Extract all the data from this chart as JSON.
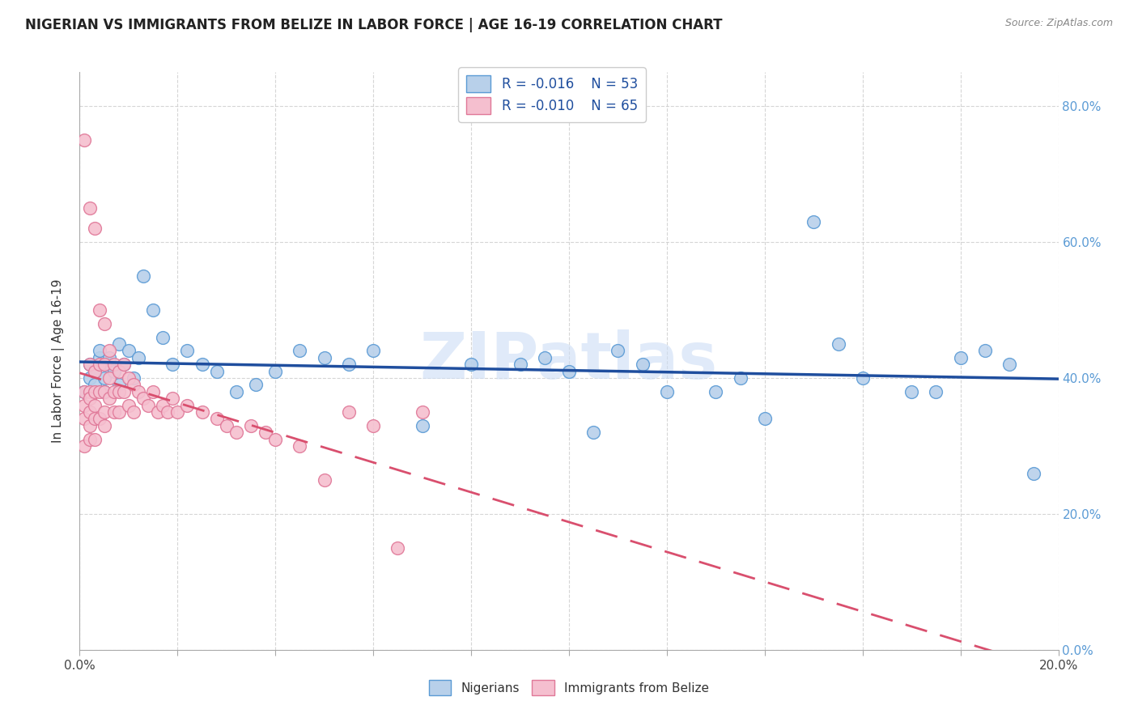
{
  "title": "NIGERIAN VS IMMIGRANTS FROM BELIZE IN LABOR FORCE | AGE 16-19 CORRELATION CHART",
  "source": "Source: ZipAtlas.com",
  "ylabel": "In Labor Force | Age 16-19",
  "xlim": [
    0.0,
    0.2
  ],
  "ylim": [
    0.0,
    0.85
  ],
  "xtick_positions": [
    0.0,
    0.02,
    0.04,
    0.06,
    0.08,
    0.1,
    0.12,
    0.14,
    0.16,
    0.18,
    0.2
  ],
  "xtick_labels": [
    "0.0%",
    "",
    "",
    "",
    "",
    "",
    "",
    "",
    "",
    "",
    "20.0%"
  ],
  "yticks": [
    0.0,
    0.2,
    0.4,
    0.6,
    0.8
  ],
  "ytick_labels": [
    "0.0%",
    "20.0%",
    "40.0%",
    "60.0%",
    "80.0%"
  ],
  "nigerian_R": -0.016,
  "nigerian_N": 53,
  "belize_R": -0.01,
  "belize_N": 65,
  "nigerian_color": "#b8d0ea",
  "nigerian_edge": "#5b9bd5",
  "belize_color": "#f5bfcf",
  "belize_edge": "#e07898",
  "nigerian_line_color": "#1f4e9e",
  "belize_line_color": "#d94f6e",
  "watermark": "ZIPatlas",
  "nigerian_x": [
    0.001,
    0.002,
    0.002,
    0.003,
    0.003,
    0.004,
    0.004,
    0.005,
    0.005,
    0.006,
    0.006,
    0.007,
    0.008,
    0.008,
    0.009,
    0.01,
    0.011,
    0.012,
    0.013,
    0.015,
    0.017,
    0.019,
    0.022,
    0.025,
    0.028,
    0.032,
    0.036,
    0.04,
    0.045,
    0.05,
    0.055,
    0.06,
    0.07,
    0.08,
    0.09,
    0.095,
    0.1,
    0.105,
    0.11,
    0.115,
    0.12,
    0.13,
    0.135,
    0.14,
    0.15,
    0.155,
    0.16,
    0.17,
    0.175,
    0.18,
    0.185,
    0.19,
    0.195
  ],
  "nigerian_y": [
    0.38,
    0.42,
    0.4,
    0.41,
    0.39,
    0.43,
    0.44,
    0.4,
    0.38,
    0.42,
    0.43,
    0.41,
    0.39,
    0.45,
    0.42,
    0.44,
    0.4,
    0.43,
    0.55,
    0.5,
    0.46,
    0.42,
    0.44,
    0.42,
    0.41,
    0.38,
    0.39,
    0.41,
    0.44,
    0.43,
    0.42,
    0.44,
    0.33,
    0.42,
    0.42,
    0.43,
    0.41,
    0.32,
    0.44,
    0.42,
    0.38,
    0.38,
    0.4,
    0.34,
    0.63,
    0.45,
    0.4,
    0.38,
    0.38,
    0.43,
    0.44,
    0.42,
    0.26
  ],
  "belize_x": [
    0.001,
    0.001,
    0.001,
    0.001,
    0.001,
    0.002,
    0.002,
    0.002,
    0.002,
    0.002,
    0.002,
    0.002,
    0.003,
    0.003,
    0.003,
    0.003,
    0.003,
    0.003,
    0.004,
    0.004,
    0.004,
    0.004,
    0.005,
    0.005,
    0.005,
    0.005,
    0.005,
    0.006,
    0.006,
    0.006,
    0.007,
    0.007,
    0.007,
    0.008,
    0.008,
    0.008,
    0.009,
    0.009,
    0.01,
    0.01,
    0.011,
    0.011,
    0.012,
    0.013,
    0.014,
    0.015,
    0.016,
    0.017,
    0.018,
    0.019,
    0.02,
    0.022,
    0.025,
    0.028,
    0.03,
    0.032,
    0.035,
    0.038,
    0.04,
    0.045,
    0.05,
    0.055,
    0.06,
    0.065,
    0.07
  ],
  "belize_y": [
    0.75,
    0.38,
    0.36,
    0.34,
    0.3,
    0.65,
    0.42,
    0.38,
    0.37,
    0.35,
    0.33,
    0.31,
    0.62,
    0.41,
    0.38,
    0.36,
    0.34,
    0.31,
    0.5,
    0.42,
    0.38,
    0.34,
    0.48,
    0.42,
    0.38,
    0.35,
    0.33,
    0.44,
    0.4,
    0.37,
    0.42,
    0.38,
    0.35,
    0.41,
    0.38,
    0.35,
    0.42,
    0.38,
    0.4,
    0.36,
    0.39,
    0.35,
    0.38,
    0.37,
    0.36,
    0.38,
    0.35,
    0.36,
    0.35,
    0.37,
    0.35,
    0.36,
    0.35,
    0.34,
    0.33,
    0.32,
    0.33,
    0.32,
    0.31,
    0.3,
    0.25,
    0.35,
    0.33,
    0.15,
    0.35
  ]
}
